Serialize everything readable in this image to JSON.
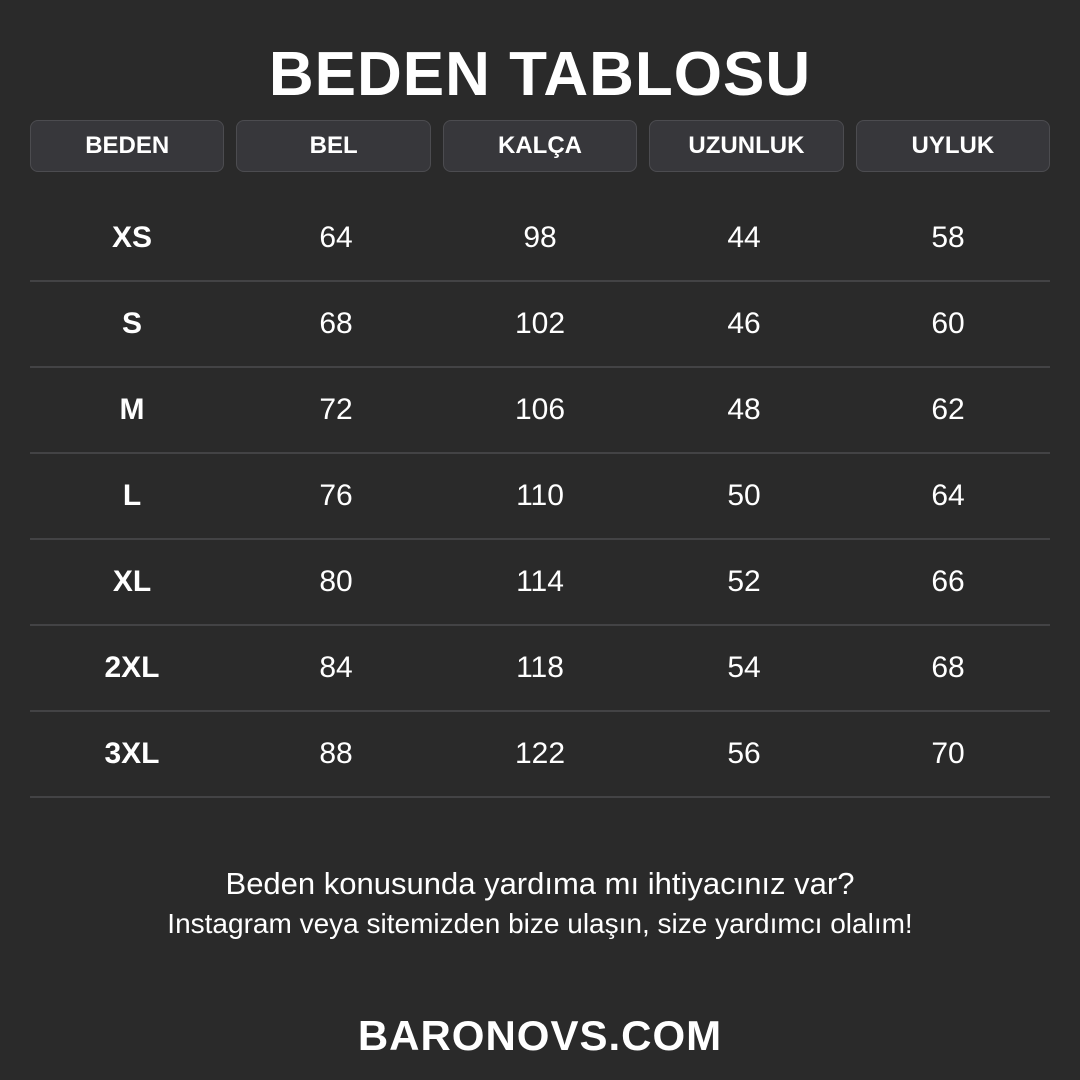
{
  "title": "BEDEN TABLOSU",
  "headers": [
    "BEDEN",
    "BEL",
    "KALÇA",
    "UZUNLUK",
    "UYLUK"
  ],
  "rows": [
    [
      "XS",
      "64",
      "98",
      "44",
      "58"
    ],
    [
      "S",
      "68",
      "102",
      "46",
      "60"
    ],
    [
      "M",
      "72",
      "106",
      "48",
      "62"
    ],
    [
      "L",
      "76",
      "110",
      "50",
      "64"
    ],
    [
      "XL",
      "80",
      "114",
      "52",
      "66"
    ],
    [
      "2XL",
      "84",
      "118",
      "54",
      "68"
    ],
    [
      "3XL",
      "88",
      "122",
      "56",
      "70"
    ]
  ],
  "footer": {
    "line1": "Beden konusunda yardıma mı ihtiyacınız var?",
    "line2": "Instagram veya sitemizden bize ulaşın, size yardımcı olalım!",
    "brand": "BARONOVS.COM"
  },
  "colors": {
    "background": "#2a2a2a",
    "header_cell": "#37373b",
    "text": "#ffffff"
  }
}
